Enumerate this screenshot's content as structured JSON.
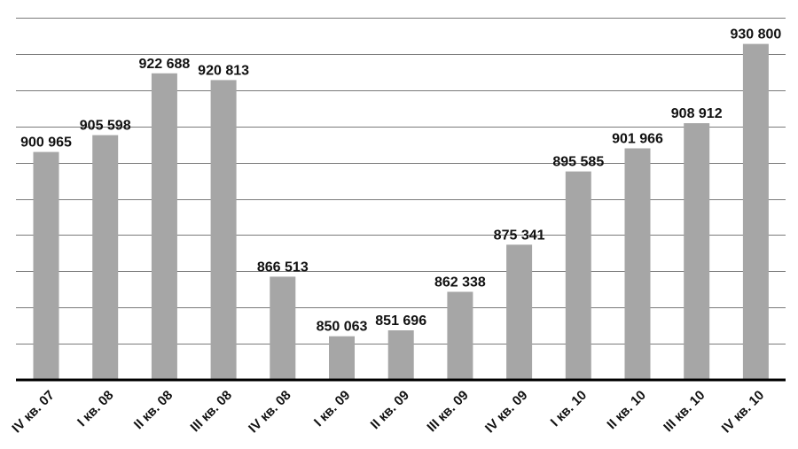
{
  "chart_data": {
    "type": "bar",
    "title": "",
    "xlabel": "",
    "ylabel": "",
    "categories": [
      "IV кв. 07",
      "I кв. 08",
      "II кв. 08",
      "III кв. 08",
      "IV кв. 08",
      "I кв. 09",
      "II кв. 09",
      "III кв. 09",
      "IV кв. 09",
      "I кв. 10",
      "II кв. 10",
      "III кв. 10",
      "IV кв. 10"
    ],
    "values": [
      900965,
      905598,
      922688,
      920813,
      866513,
      850063,
      851696,
      862338,
      875341,
      895585,
      901966,
      908912,
      930800
    ],
    "value_labels": [
      "900 965",
      "905 598",
      "922 688",
      "920 813",
      "866 513",
      "850 063",
      "851 696",
      "862 338",
      "875 341",
      "895 585",
      "901 966",
      "908 912",
      "930 800"
    ],
    "ylim": [
      838000,
      940000
    ],
    "y_gridlines": [
      838000,
      848000,
      858000,
      868000,
      878000,
      888000,
      898000,
      908000,
      918000,
      928000,
      938000
    ],
    "grid": true,
    "y_tick_labels_visible": false,
    "legend": "none",
    "bar_color": "#a6a6a6",
    "grid_color": "#7a7a7a",
    "axis_color": "#000000"
  }
}
